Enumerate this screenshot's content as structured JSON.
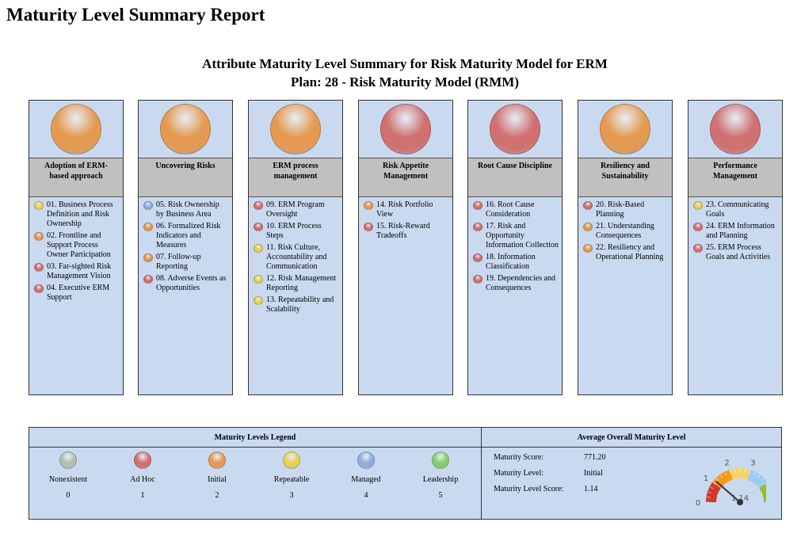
{
  "page_title": "Maturity Level Summary Report",
  "subtitle_1": "Attribute Maturity Level Summary for Risk Maturity Model for ERM",
  "subtitle_2": "Plan: 28 - Risk Maturity Model (RMM)",
  "level_colors": {
    "0": "#b4bcb4",
    "1": "#d07070",
    "2": "#e49a50",
    "3": "#e8d050",
    "4": "#90aed8",
    "5": "#88cc70"
  },
  "attributes": [
    {
      "name": "Adoption of ERM-based approach",
      "level": 2,
      "items": [
        {
          "label": "01. Business Process Definition and Risk Ownership",
          "level": 3
        },
        {
          "label": "02. Frontline and Support Process Owner Participation",
          "level": 2
        },
        {
          "label": "03. Far-sighted Risk Management Vision",
          "level": 1
        },
        {
          "label": "04. Executive ERM Support",
          "level": 1
        }
      ]
    },
    {
      "name": "Uncovering Risks",
      "level": 2,
      "items": [
        {
          "label": "05. Risk Ownership by Business Area",
          "level": 4
        },
        {
          "label": "06. Formalized Risk Indicators and Measures",
          "level": 2
        },
        {
          "label": "07. Follow-up Reporting",
          "level": 2
        },
        {
          "label": "08. Adverse Events as Opportunities",
          "level": 1
        }
      ]
    },
    {
      "name": "ERM process management",
      "level": 2,
      "items": [
        {
          "label": "09. ERM Program Oversight",
          "level": 1
        },
        {
          "label": "10. ERM Process Steps",
          "level": 1
        },
        {
          "label": "11. Risk Culture, Accountability and Communication",
          "level": 3
        },
        {
          "label": "12. Risk Management Reporting",
          "level": 3
        },
        {
          "label": "13. Repeatability and Scalability",
          "level": 3
        }
      ]
    },
    {
      "name": "Risk Appetite Management",
      "level": 1,
      "items": [
        {
          "label": "14. Risk Portfolio View",
          "level": 2
        },
        {
          "label": "15. Risk-Reward Tradeoffs",
          "level": 1
        }
      ]
    },
    {
      "name": "Root Cause Discipline",
      "level": 1,
      "items": [
        {
          "label": "16. Root Cause Consideration",
          "level": 1
        },
        {
          "label": "17. Risk and Opportunity Information Collection",
          "level": 1
        },
        {
          "label": "18. Information Classification",
          "level": 1
        },
        {
          "label": "19. Dependencies and Consequences",
          "level": 1
        }
      ]
    },
    {
      "name": "Resiliency and Sustainability",
      "level": 2,
      "items": [
        {
          "label": "20. Risk-Based Planning",
          "level": 1
        },
        {
          "label": "21. Understanding Consequences",
          "level": 2
        },
        {
          "label": "22. Resiliency and Operational Planning",
          "level": 2
        }
      ]
    },
    {
      "name": "Performance Management",
      "level": 1,
      "items": [
        {
          "label": "23. Communicating Goals",
          "level": 3
        },
        {
          "label": "24. ERM Information and Planning",
          "level": 1
        },
        {
          "label": "25. ERM Process Goals and Activities",
          "level": 1
        }
      ]
    }
  ],
  "legend": {
    "title": "Maturity Levels Legend",
    "levels": [
      {
        "name": "Nonexistent",
        "value": "0"
      },
      {
        "name": "Ad Hoc",
        "value": "1"
      },
      {
        "name": "Initial",
        "value": "2"
      },
      {
        "name": "Repeatable",
        "value": "3"
      },
      {
        "name": "Managed",
        "value": "4"
      },
      {
        "name": "Leadership",
        "value": "5"
      }
    ]
  },
  "overall": {
    "title": "Average Overall Maturity Level",
    "score_label": "Maturity Score:",
    "score": "771.20",
    "level_label": "Maturity Level:",
    "level": "Initial",
    "level_score_label": "Maturity Level Score:",
    "level_score": "1.14",
    "gauge": {
      "min": 0,
      "max": 5,
      "value": 1.14,
      "ticks": [
        "0",
        "1",
        "2",
        "3",
        "4",
        "5"
      ],
      "band_colors": [
        "#d0382a",
        "#f39a1a",
        "#f4d46a",
        "#9ccbf4",
        "#95c11f"
      ]
    }
  }
}
